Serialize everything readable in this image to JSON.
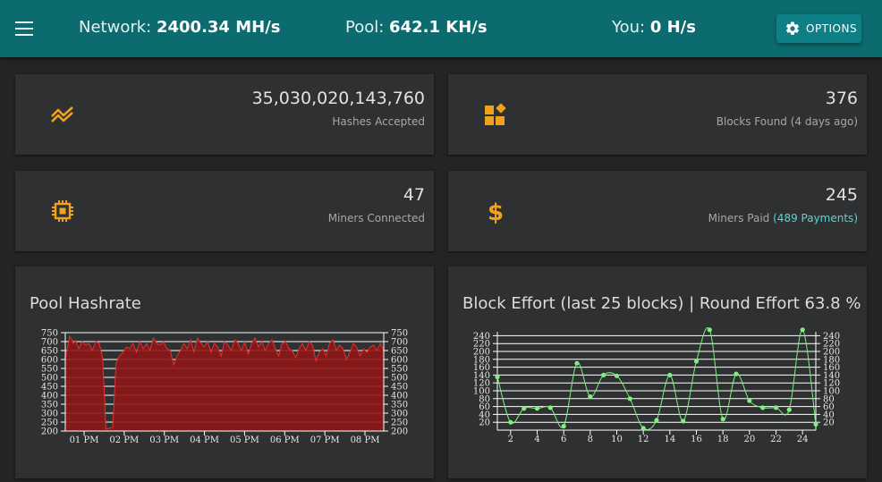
{
  "header": {
    "network_label": "Network:",
    "network_value": "2400.34 MH/s",
    "pool_label": "Pool:",
    "pool_value": "642.1 KH/s",
    "you_label": "You:",
    "you_value": "0 H/s",
    "options_label": "OPTIONS",
    "bar_color": "#0b6b6e"
  },
  "cards": {
    "hashes": {
      "value": "35,030,020,143,760",
      "label": "Hashes Accepted",
      "icon": "trend-icon"
    },
    "blocks": {
      "value": "376",
      "label": "Blocks Found (4 days ago)",
      "icon": "widgets-icon"
    },
    "miners": {
      "value": "47",
      "label": "Miners Connected",
      "icon": "chip-icon"
    },
    "paid": {
      "value": "245",
      "label": "Miners Paid",
      "link": "(489 Payments)",
      "icon": "dollar-icon"
    }
  },
  "accent_color": "#f0a21e",
  "hashrate_chart": {
    "title": "Pool Hashrate",
    "chart_data": {
      "type": "area",
      "x_ticks": [
        "01 PM",
        "02 PM",
        "03 PM",
        "04 PM",
        "05 PM",
        "06 PM",
        "07 PM",
        "08 PM"
      ],
      "y_ticks": [
        200,
        250,
        300,
        350,
        400,
        450,
        500,
        550,
        600,
        650,
        700,
        750
      ],
      "ylim": [
        200,
        750
      ],
      "x": [
        0.0,
        0.5,
        0.6,
        1.0,
        1.2,
        1.5,
        2.0,
        2.5,
        3.0,
        3.5,
        4.0,
        4.5,
        5.0,
        5.5,
        6.0,
        6.5,
        7.0,
        7.5,
        8.0,
        8.5,
        9.0,
        9.5,
        10.0,
        10.5,
        11.0,
        11.5,
        12.0,
        12.5,
        13.0,
        13.5,
        14.0,
        14.5,
        15.0,
        15.5,
        16.0,
        16.5,
        17.0,
        17.5,
        18.0,
        18.5,
        19.0,
        19.5,
        20.0,
        20.5,
        21.0,
        21.5,
        22.0,
        22.5,
        23.0,
        23.5,
        24.0,
        24.5,
        25.0,
        25.5,
        26.0,
        26.5,
        27.0,
        27.5,
        28.0,
        28.5,
        29.0,
        29.5,
        30.0,
        30.5,
        31.0,
        31.5,
        32.0,
        32.5,
        33.0,
        33.5,
        34.0,
        34.5,
        35.0,
        35.5,
        36.0,
        36.5,
        37.0,
        37.5,
        38.0,
        38.5,
        39.0,
        39.5,
        40.0,
        40.5,
        41.0,
        41.5,
        42.0,
        42.5,
        43.0,
        43.5,
        44.0,
        44.5,
        45.0,
        45.5,
        46.0,
        46.5,
        47.0
      ],
      "values": [
        600,
        700,
        730,
        710,
        690,
        705,
        660,
        700,
        680,
        690,
        650,
        700,
        690,
        610,
        210,
        215,
        220,
        580,
        620,
        640,
        670,
        660,
        690,
        640,
        700,
        660,
        690,
        650,
        720,
        690,
        680,
        700,
        660,
        650,
        570,
        620,
        650,
        690,
        660,
        710,
        640,
        720,
        690,
        670,
        700,
        640,
        690,
        670,
        620,
        700,
        680,
        650,
        710,
        690,
        650,
        700,
        630,
        690,
        720,
        670,
        700,
        650,
        690,
        710,
        660,
        620,
        690,
        700,
        660,
        650,
        610,
        660,
        690,
        650,
        700,
        680,
        590,
        640,
        660,
        620,
        690,
        710,
        650,
        680,
        660,
        600,
        640,
        690,
        670,
        620,
        660,
        640,
        670,
        680,
        650,
        690,
        650
      ],
      "fill_color": "#8f1717",
      "line_color": "#e23232"
    }
  },
  "effort_chart": {
    "title": "Block Effort (last 25 blocks) | Round Effort 63.8 %",
    "chart_data": {
      "type": "scatter",
      "x_ticks": [
        2,
        4,
        6,
        8,
        10,
        12,
        14,
        16,
        18,
        20,
        22,
        24
      ],
      "y_ticks": [
        20,
        40,
        60,
        80,
        100,
        120,
        140,
        160,
        180,
        200,
        220,
        240
      ],
      "xlim": [
        1,
        25
      ],
      "ylim": [
        0,
        250
      ],
      "x": [
        1,
        2,
        3,
        4,
        5,
        6,
        7,
        8,
        9,
        10,
        11,
        12,
        13,
        14,
        15,
        16,
        17,
        18,
        19,
        20,
        21,
        22,
        23,
        24,
        25
      ],
      "values": [
        135,
        20,
        55,
        55,
        57,
        10,
        170,
        85,
        140,
        138,
        80,
        5,
        25,
        140,
        23,
        175,
        255,
        28,
        143,
        75,
        57,
        57,
        52,
        255,
        15
      ],
      "point_color": "#7df07d",
      "line_color": "#7df07d"
    }
  }
}
